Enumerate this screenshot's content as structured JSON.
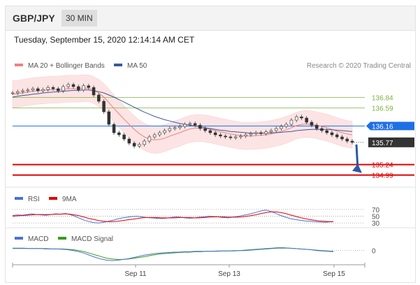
{
  "header": {
    "pair": "GBP/JPY",
    "timeframe": "30 MIN"
  },
  "timestamp": "Tuesday, September 15, 2020 12:14:14 AM CET",
  "legend": {
    "ma20_label": "MA 20 + Bollinger Bands",
    "ma50_label": "MA 50",
    "credit": "Research © 2020 Trading Central"
  },
  "colors": {
    "ma20": "#f08080",
    "ma50": "#3a5a9a",
    "band": "#fde0e0",
    "support": "#e00000",
    "pivot": "#1e6fe6",
    "resistance": "#7cb342",
    "price_box": "#333333",
    "arrow": "#2b5aa0",
    "rsi": "#4a6fd8",
    "rsi_ma": "#e00000",
    "macd": "#4a6fd8",
    "macd_signal": "#3a9a1a"
  },
  "chart_data": [
    {
      "type": "line",
      "panel": "price",
      "x_ticks": [
        "Sep 11",
        "Sep 13",
        "Sep 15"
      ],
      "ylim": [
        134.8,
        137.3
      ],
      "current_price": 135.77,
      "levels": [
        {
          "value": 136.84,
          "label": "136.84",
          "kind": "resistance"
        },
        {
          "value": 136.59,
          "label": "136.59",
          "kind": "resistance"
        },
        {
          "value": 136.16,
          "label": "136.16",
          "kind": "pivot"
        },
        {
          "value": 135.24,
          "label": "135.24",
          "kind": "support"
        },
        {
          "value": 134.99,
          "label": "134.99",
          "kind": "support"
        }
      ],
      "price": [
        136.95,
        136.98,
        137.0,
        137.02,
        137.05,
        137.0,
        137.03,
        137.08,
        137.05,
        137.0,
        137.1,
        137.15,
        137.1,
        137.02,
        137.12,
        137.08,
        136.9,
        136.75,
        136.5,
        136.2,
        136.0,
        135.95,
        135.85,
        135.75,
        135.68,
        135.72,
        135.8,
        135.9,
        135.95,
        136.0,
        136.05,
        136.1,
        136.12,
        136.15,
        136.2,
        136.22,
        136.18,
        136.1,
        136.05,
        136.0,
        135.95,
        135.92,
        135.9,
        135.88,
        135.9,
        135.92,
        135.95,
        135.98,
        136.0,
        135.98,
        136.02,
        136.05,
        136.1,
        136.15,
        136.2,
        136.3,
        136.38,
        136.35,
        136.25,
        136.18,
        136.1,
        136.05,
        136.0,
        135.95,
        135.9,
        135.85,
        135.8,
        135.77
      ],
      "ma20": [
        136.92,
        136.93,
        136.95,
        136.97,
        136.99,
        137.0,
        137.01,
        137.02,
        137.03,
        137.03,
        137.04,
        137.05,
        137.05,
        137.05,
        137.06,
        137.06,
        137.02,
        136.95,
        136.85,
        136.72,
        136.58,
        136.45,
        136.32,
        136.2,
        136.08,
        135.98,
        135.9,
        135.85,
        135.83,
        135.84,
        135.87,
        135.92,
        135.96,
        136.0,
        136.05,
        136.09,
        136.11,
        136.11,
        136.1,
        136.08,
        136.05,
        136.02,
        136.0,
        135.97,
        135.95,
        135.93,
        135.92,
        135.92,
        135.93,
        135.94,
        135.95,
        135.97,
        136.0,
        136.03,
        136.07,
        136.12,
        136.17,
        136.2,
        136.21,
        136.2,
        136.18,
        136.15,
        136.12,
        136.08,
        136.04,
        136.0,
        135.97,
        135.95
      ],
      "ma50": [
        136.85,
        136.87,
        136.89,
        136.9,
        136.92,
        136.93,
        136.95,
        136.96,
        136.97,
        136.98,
        136.99,
        137.0,
        137.01,
        137.01,
        137.02,
        137.02,
        137.0,
        136.98,
        136.95,
        136.9,
        136.85,
        136.79,
        136.73,
        136.67,
        136.61,
        136.55,
        136.49,
        136.44,
        136.39,
        136.35,
        136.31,
        136.28,
        136.25,
        136.22,
        136.2,
        136.18,
        136.16,
        136.14,
        136.12,
        136.1,
        136.08,
        136.06,
        136.05,
        136.03,
        136.02,
        136.01,
        136.0,
        135.99,
        135.99,
        135.99,
        135.99,
        136.0,
        136.0,
        136.01,
        136.02,
        136.03,
        136.05,
        136.06,
        136.07,
        136.08,
        136.08,
        136.08,
        136.08,
        136.07,
        136.06,
        136.05,
        136.04,
        136.03
      ]
    },
    {
      "type": "line",
      "panel": "rsi",
      "legend": [
        "RSI",
        "9MA"
      ],
      "levels": [
        70,
        50,
        30
      ],
      "ylim": [
        20,
        80
      ],
      "rsi": [
        52,
        54,
        53,
        55,
        57,
        55,
        54,
        53,
        55,
        57,
        56,
        58,
        55,
        50,
        44,
        38,
        34,
        31,
        30,
        32,
        35,
        38,
        42,
        45,
        47,
        49,
        50,
        48,
        46,
        45,
        44,
        43,
        44,
        46,
        48,
        47,
        45,
        44,
        45,
        47,
        48,
        50,
        49,
        48,
        46,
        45,
        47,
        49,
        52,
        55,
        58,
        62,
        66,
        68,
        64,
        58,
        52,
        47,
        43,
        40,
        38,
        36,
        35,
        34,
        33,
        32,
        33,
        34
      ],
      "rsi_ma": [
        50,
        51,
        52,
        53,
        54,
        55,
        55,
        55,
        55,
        56,
        56,
        57,
        56,
        54,
        51,
        47,
        43,
        40,
        37,
        35,
        34,
        34,
        35,
        37,
        39,
        41,
        43,
        45,
        46,
        46,
        46,
        45,
        45,
        45,
        45,
        46,
        46,
        46,
        45,
        45,
        46,
        47,
        48,
        48,
        48,
        47,
        47,
        47,
        48,
        50,
        52,
        55,
        58,
        61,
        63,
        63,
        61,
        58,
        54,
        50,
        46,
        43,
        40,
        38,
        36,
        35,
        34,
        34
      ]
    },
    {
      "type": "line",
      "panel": "macd",
      "legend": [
        "MACD",
        "MACD Signal"
      ],
      "levels": [
        0
      ],
      "ylim": [
        -0.3,
        0.15
      ],
      "macd": [
        0.06,
        0.06,
        0.06,
        0.05,
        0.05,
        0.05,
        0.04,
        0.04,
        0.04,
        0.03,
        0.02,
        0.0,
        -0.03,
        -0.07,
        -0.12,
        -0.17,
        -0.21,
        -0.24,
        -0.25,
        -0.24,
        -0.22,
        -0.2,
        -0.17,
        -0.14,
        -0.11,
        -0.09,
        -0.07,
        -0.06,
        -0.05,
        -0.04,
        -0.04,
        -0.03,
        -0.03,
        -0.02,
        -0.02,
        -0.02,
        -0.02,
        -0.01,
        -0.01,
        -0.01,
        0.0,
        0.0,
        0.01,
        0.02,
        0.03,
        0.04,
        0.05,
        0.06,
        0.07,
        0.07,
        0.06,
        0.05,
        0.04,
        0.03,
        0.02,
        0.0,
        -0.01,
        -0.02,
        -0.03
      ],
      "signal": [
        0.05,
        0.05,
        0.05,
        0.05,
        0.05,
        0.05,
        0.05,
        0.04,
        0.04,
        0.04,
        0.03,
        0.02,
        0.0,
        -0.03,
        -0.07,
        -0.11,
        -0.15,
        -0.19,
        -0.21,
        -0.22,
        -0.22,
        -0.21,
        -0.19,
        -0.17,
        -0.15,
        -0.12,
        -0.1,
        -0.08,
        -0.07,
        -0.06,
        -0.05,
        -0.04,
        -0.04,
        -0.03,
        -0.03,
        -0.02,
        -0.02,
        -0.02,
        -0.01,
        -0.01,
        -0.01,
        0.0,
        0.0,
        0.01,
        0.02,
        0.03,
        0.04,
        0.05,
        0.06,
        0.06,
        0.06,
        0.05,
        0.04,
        0.03,
        0.02,
        0.01,
        0.0,
        -0.01,
        -0.02
      ]
    }
  ]
}
